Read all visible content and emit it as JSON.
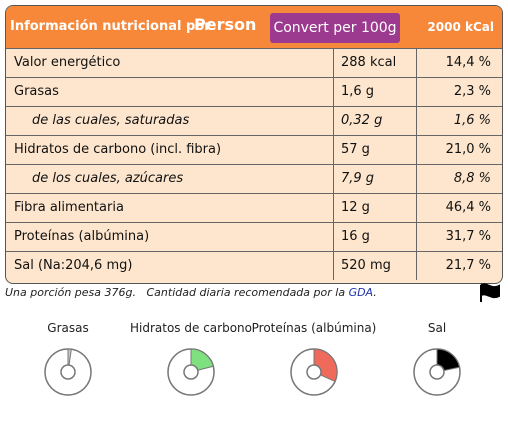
{
  "header": {
    "title": "Información nutricional por",
    "unit": "Person",
    "button": "Convert per 100g",
    "reference": "2000 kCal"
  },
  "table": {
    "rows": [
      {
        "cells": [
          "Valor energético",
          "288 kcal",
          "14,4 %"
        ],
        "italic": false
      },
      {
        "cells": [
          "Grasas",
          "1,6 g",
          "2,3 %"
        ],
        "italic": false
      },
      {
        "cells": [
          "de las cuales, saturadas",
          "0,32 g",
          "1,6 %"
        ],
        "italic": true
      },
      {
        "cells": [
          "Hidratos de carbono (incl. fibra)",
          "57 g",
          "21,0 %"
        ],
        "italic": false
      },
      {
        "cells": [
          "de los cuales, azúcares",
          "7,9 g",
          "8,8 %"
        ],
        "italic": true
      },
      {
        "cells": [
          "Fibra alimentaria",
          "12 g",
          "46,4 %"
        ],
        "italic": false
      },
      {
        "cells": [
          "Proteínas (albúmina)",
          "16 g",
          "31,7 %"
        ],
        "italic": false
      },
      {
        "cells": [
          "Sal (Na:204,6 mg)",
          "520 mg",
          "21,7 %"
        ],
        "italic": false
      }
    ]
  },
  "footer": {
    "portion": "Una porción pesa 376g.",
    "note": "Cantidad diaria recomendada por la",
    "link": "GDA",
    "end": "."
  },
  "gauges": {
    "range": [
      0,
      100
    ],
    "items": [
      {
        "label": "Grasas",
        "value": 2.3,
        "color": "#c8c8c8"
      },
      {
        "label": "Hidratos de carbono",
        "value": 21.0,
        "color": "#7ee07e"
      },
      {
        "label": "Proteínas (albúmina)",
        "value": 31.7,
        "color": "#ef6a5a"
      },
      {
        "label": "Sal",
        "value": 21.7,
        "color": "#000000"
      }
    ]
  }
}
